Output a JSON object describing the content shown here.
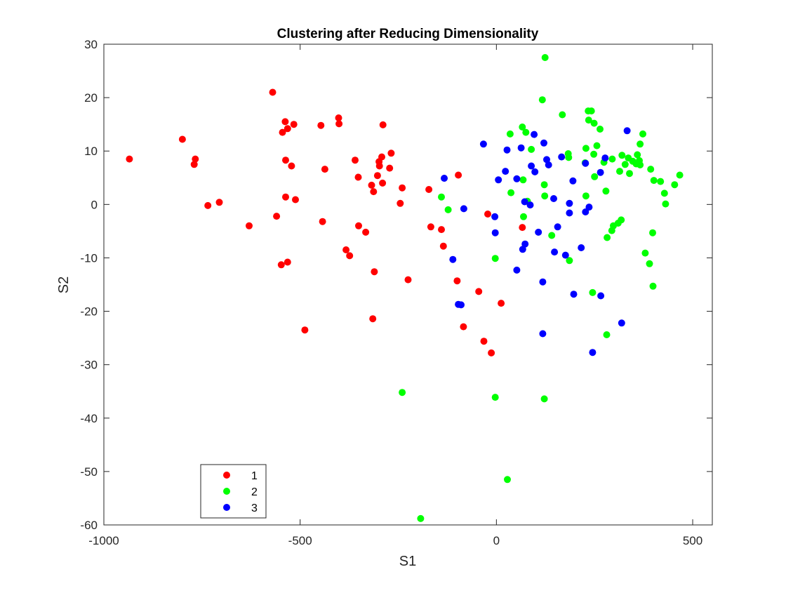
{
  "chart_data": {
    "type": "scatter",
    "title": "Clustering after Reducing Dimensionality",
    "xlabel": "S1",
    "ylabel": "S2",
    "xlim": [
      -1000,
      550
    ],
    "ylim": [
      -60,
      30
    ],
    "xticks": [
      -1000,
      -500,
      0,
      500
    ],
    "yticks": [
      30,
      20,
      10,
      0,
      -10,
      -20,
      -30,
      -40,
      -50,
      -60
    ],
    "grid": false,
    "legend_position": "bottom-left",
    "series": [
      {
        "name": "1",
        "color": "#ff0000",
        "points": [
          [
            -935,
            8.5
          ],
          [
            -800,
            12.2
          ],
          [
            -770,
            7.5
          ],
          [
            -767,
            8.5
          ],
          [
            -735,
            -0.2
          ],
          [
            -706,
            0.4
          ],
          [
            -630,
            -4
          ],
          [
            -570,
            21
          ],
          [
            -560,
            -2.2
          ],
          [
            -545,
            13.5
          ],
          [
            -548,
            -11.3
          ],
          [
            -538,
            15.5
          ],
          [
            -537,
            8.3
          ],
          [
            -537,
            1.4
          ],
          [
            -532,
            14.2
          ],
          [
            -532,
            -10.8
          ],
          [
            -522,
            7.2
          ],
          [
            -516,
            15
          ],
          [
            -512,
            0.9
          ],
          [
            -488,
            -23.5
          ],
          [
            -447,
            14.8
          ],
          [
            -443,
            -3.2
          ],
          [
            -437,
            6.6
          ],
          [
            -402,
            16.2
          ],
          [
            -401,
            15.1
          ],
          [
            -383,
            -8.5
          ],
          [
            -374,
            -9.6
          ],
          [
            -360,
            8.3
          ],
          [
            -352,
            5.1
          ],
          [
            -351,
            -4
          ],
          [
            -333,
            -5.2
          ],
          [
            -318,
            3.6
          ],
          [
            -315,
            -21.4
          ],
          [
            -313,
            2.4
          ],
          [
            -311,
            -12.6
          ],
          [
            -303,
            5.4
          ],
          [
            -299,
            8
          ],
          [
            -298,
            7.2
          ],
          [
            -292,
            8.9
          ],
          [
            -290,
            4
          ],
          [
            -289,
            14.9
          ],
          [
            -272,
            6.8
          ],
          [
            -268,
            9.6
          ],
          [
            -245,
            0.2
          ],
          [
            -240,
            3.1
          ],
          [
            -225,
            -14.1
          ],
          [
            -172,
            2.8
          ],
          [
            -167,
            -4.2
          ],
          [
            -140,
            -4.7
          ],
          [
            -135,
            -7.8
          ],
          [
            -100,
            -14.3
          ],
          [
            -97,
            5.5
          ],
          [
            -84,
            -22.9
          ],
          [
            -45,
            -16.3
          ],
          [
            -32,
            -25.6
          ],
          [
            -22,
            -1.8
          ],
          [
            -13,
            -27.8
          ],
          [
            12,
            -18.5
          ],
          [
            66,
            -4.3
          ]
        ]
      },
      {
        "name": "2",
        "color": "#00ff00",
        "points": [
          [
            -193,
            -58.8
          ],
          [
            -240,
            -35.2
          ],
          [
            -140,
            1.4
          ],
          [
            -123,
            -1
          ],
          [
            -3,
            -10.1
          ],
          [
            -3,
            -36.1
          ],
          [
            28,
            -51.5
          ],
          [
            35,
            13.2
          ],
          [
            37,
            2.2
          ],
          [
            66,
            14.5
          ],
          [
            68,
            4.6
          ],
          [
            69,
            -2.3
          ],
          [
            75,
            13.5
          ],
          [
            79,
            0.6
          ],
          [
            89,
            10.3
          ],
          [
            117,
            19.6
          ],
          [
            122,
            3.7
          ],
          [
            123,
            1.6
          ],
          [
            122,
            -36.4
          ],
          [
            124,
            27.5
          ],
          [
            141,
            -5.8
          ],
          [
            168,
            16.8
          ],
          [
            183,
            9.5
          ],
          [
            184,
            8.8
          ],
          [
            186,
            -10.5
          ],
          [
            226,
            7.8
          ],
          [
            228,
            1.6
          ],
          [
            228,
            10.5
          ],
          [
            234,
            17.5
          ],
          [
            235,
            15.8
          ],
          [
            242,
            17.5
          ],
          [
            245,
            -16.5
          ],
          [
            248,
            9.4
          ],
          [
            249,
            15.2
          ],
          [
            250,
            5.2
          ],
          [
            256,
            11
          ],
          [
            264,
            14.1
          ],
          [
            274,
            7.9
          ],
          [
            279,
            2.5
          ],
          [
            281,
            -24.4
          ],
          [
            282,
            -6.2
          ],
          [
            294,
            -4.9
          ],
          [
            295,
            8.5
          ],
          [
            298,
            -4
          ],
          [
            310,
            -3.5
          ],
          [
            314,
            6.2
          ],
          [
            318,
            -2.9
          ],
          [
            320,
            9.2
          ],
          [
            328,
            7.5
          ],
          [
            336,
            8.7
          ],
          [
            339,
            5.8
          ],
          [
            347,
            8.1
          ],
          [
            356,
            7.6
          ],
          [
            359,
            9.3
          ],
          [
            364,
            8.2
          ],
          [
            366,
            7.4
          ],
          [
            366,
            11.3
          ],
          [
            373,
            13.2
          ],
          [
            379,
            -9.1
          ],
          [
            390,
            -11.1
          ],
          [
            393,
            6.6
          ],
          [
            398,
            -5.3
          ],
          [
            399,
            -15.3
          ],
          [
            401,
            4.5
          ],
          [
            418,
            4.3
          ],
          [
            428,
            2.1
          ],
          [
            431,
            0.1
          ],
          [
            454,
            3.7
          ],
          [
            467,
            5.5
          ]
        ]
      },
      {
        "name": "3",
        "color": "#0000ff",
        "points": [
          [
            -133,
            4.9
          ],
          [
            -111,
            -10.3
          ],
          [
            -97,
            -18.7
          ],
          [
            -90,
            -18.8
          ],
          [
            -83,
            -0.8
          ],
          [
            -33,
            11.3
          ],
          [
            -4,
            -2.3
          ],
          [
            -3,
            -5.3
          ],
          [
            5,
            4.6
          ],
          [
            23,
            6.2
          ],
          [
            27,
            10.2
          ],
          [
            52,
            4.8
          ],
          [
            52,
            -12.3
          ],
          [
            63,
            10.6
          ],
          [
            67,
            -8.4
          ],
          [
            72,
            0.5
          ],
          [
            73,
            -7.4
          ],
          [
            86,
            -0.1
          ],
          [
            89,
            7.2
          ],
          [
            96,
            13.1
          ],
          [
            98,
            6.1
          ],
          [
            107,
            -5.2
          ],
          [
            118,
            -14.5
          ],
          [
            118,
            -24.2
          ],
          [
            121,
            11.5
          ],
          [
            128,
            8.4
          ],
          [
            133,
            7.4
          ],
          [
            146,
            1.1
          ],
          [
            148,
            -8.9
          ],
          [
            156,
            -4.2
          ],
          [
            166,
            8.9
          ],
          [
            176,
            -9.5
          ],
          [
            186,
            0.2
          ],
          [
            186,
            -1.6
          ],
          [
            195,
            4.4
          ],
          [
            197,
            -16.8
          ],
          [
            216,
            -8.1
          ],
          [
            227,
            7.7
          ],
          [
            227,
            -1.4
          ],
          [
            236,
            -0.5
          ],
          [
            245,
            -27.7
          ],
          [
            265,
            6
          ],
          [
            266,
            -17.1
          ],
          [
            277,
            8.7
          ],
          [
            319,
            -22.2
          ],
          [
            333,
            13.8
          ]
        ]
      }
    ]
  }
}
